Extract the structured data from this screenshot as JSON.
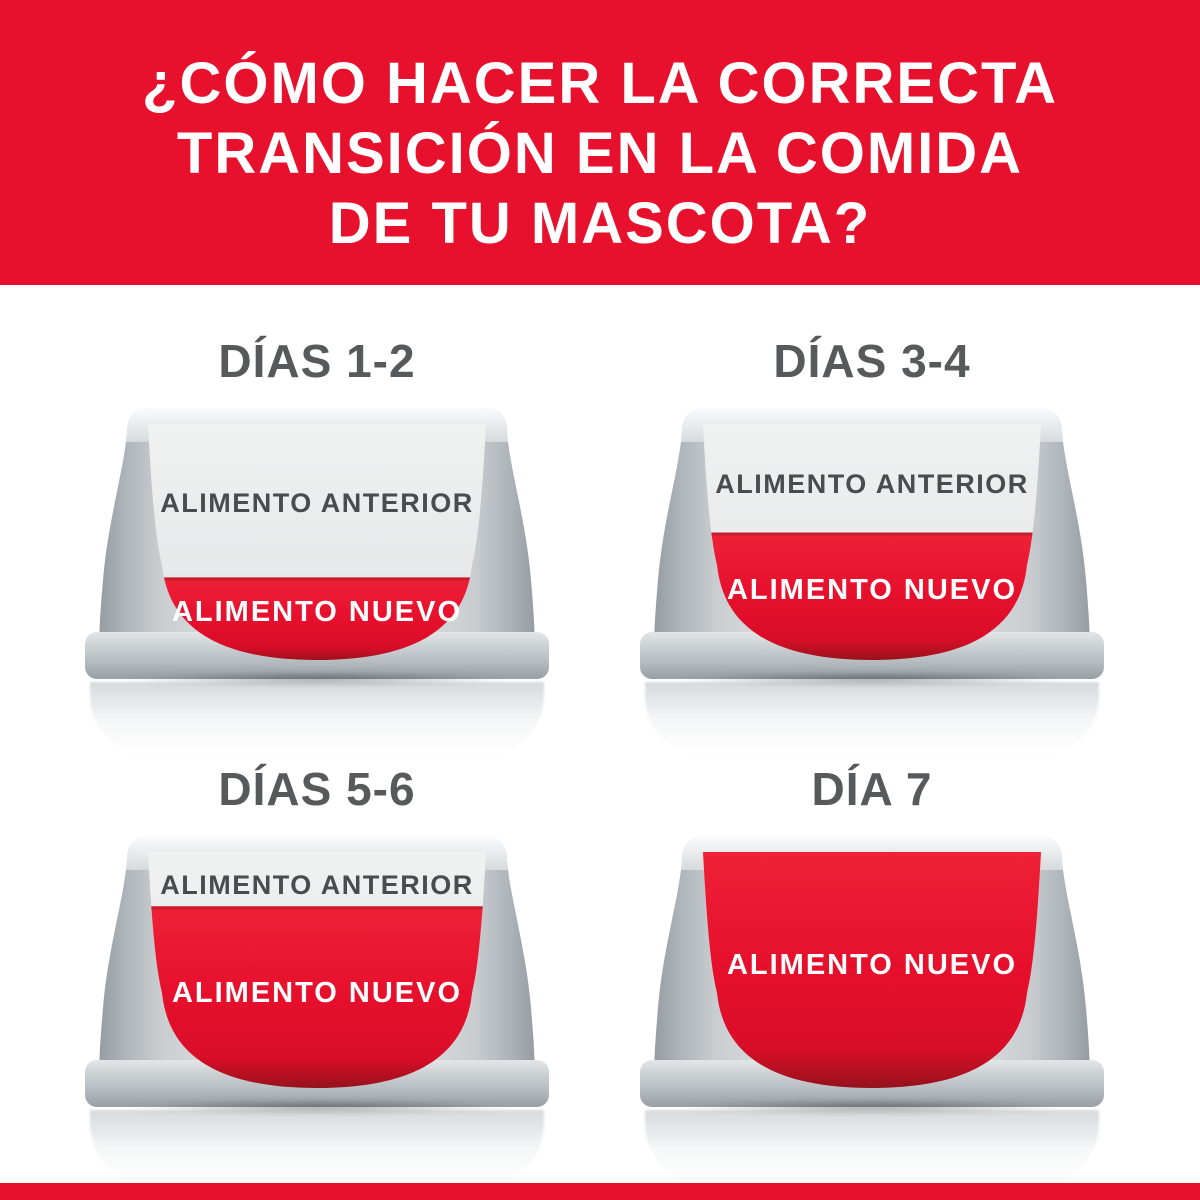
{
  "header": {
    "line1": "¿CÓMO HACER LA CORRECTA",
    "line2": "TRANSICIÓN EN LA COMIDA",
    "line3": "DE TU MASCOTA?"
  },
  "colors": {
    "brand_red": "#E8112D",
    "title_gray": "#58595B",
    "label_dark": "#4A4B4D",
    "bowl_gray": "#AAB0B6",
    "old_food_gray": "#ECEDEE"
  },
  "bowls": [
    {
      "title": "DÍAS 1-2",
      "old_food_label": "ALIMENTO ANTERIOR",
      "new_food_label": "ALIMENTO NUEVO",
      "new_food_percent": 35
    },
    {
      "title": "DÍAS 3-4",
      "old_food_label": "ALIMENTO ANTERIOR",
      "new_food_label": "ALIMENTO NUEVO",
      "new_food_percent": 54
    },
    {
      "title": "DÍAS 5-6",
      "old_food_label": "ALIMENTO ANTERIOR",
      "new_food_label": "ALIMENTO NUEVO",
      "new_food_percent": 77
    },
    {
      "title": "DÍA 7",
      "old_food_label": "",
      "new_food_label": "ALIMENTO NUEVO",
      "new_food_percent": 100
    }
  ]
}
